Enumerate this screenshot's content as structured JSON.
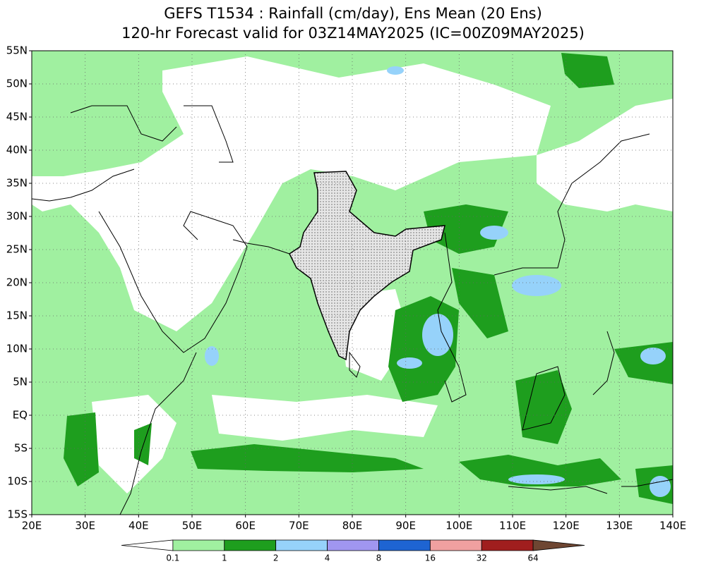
{
  "header": {
    "title": "GEFS T1534 : Rainfall (cm/day), Ens Mean (20 Ens)",
    "subtitle": "120-hr Forecast valid for 03Z14MAY2025 (IC=00Z09MAY2025)"
  },
  "map": {
    "lat_labels": [
      "55N",
      "50N",
      "45N",
      "40N",
      "35N",
      "30N",
      "25N",
      "20N",
      "15N",
      "10N",
      "5N",
      "EQ",
      "5S",
      "10S",
      "15S"
    ],
    "lon_labels": [
      "20E",
      "30E",
      "40E",
      "50E",
      "60E",
      "70E",
      "80E",
      "90E",
      "100E",
      "110E",
      "120E",
      "130E",
      "140E"
    ]
  },
  "colorbar": {
    "levels": [
      0.1,
      1,
      2,
      4,
      8,
      16,
      32,
      64
    ],
    "colors": [
      "#ffffff",
      "#a0f0a0",
      "#1e9e1e",
      "#96d2fa",
      "#a096f0",
      "#1e64d2",
      "#f0a0a0",
      "#a01e1e",
      "#6e4632"
    ]
  }
}
